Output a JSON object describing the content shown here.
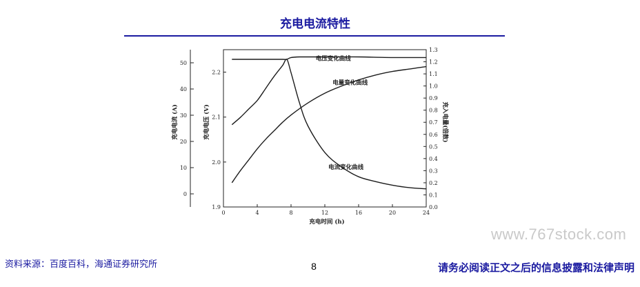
{
  "page": {
    "title": "充电电流特性",
    "source": "资料来源：百度百科，海通证券研究所",
    "page_number": "8",
    "disclaimer": "请务必阅读正文之后的信息披露和法律声明",
    "watermark": "www.767stock.com"
  },
  "chart_data": {
    "type": "line",
    "xlabel": "充电时间 (h)",
    "xlim": [
      0,
      24
    ],
    "x_ticks": [
      0,
      4,
      8,
      12,
      16,
      20,
      24
    ],
    "y_axes": {
      "current": {
        "label": "充电电流 (A)",
        "lim": [
          -5,
          55
        ],
        "ticks": [
          0,
          10,
          20,
          30,
          40,
          50
        ]
      },
      "voltage": {
        "label": "充电电压 (V)",
        "lim": [
          1.9,
          2.25
        ],
        "ticks": [
          1.9,
          2.0,
          2.1,
          2.2
        ]
      },
      "capacity": {
        "label": "充入电量(倍数)",
        "lim": [
          0,
          1.3
        ],
        "ticks": [
          0.0,
          0.1,
          0.2,
          0.3,
          0.4,
          0.5,
          0.6,
          0.7,
          0.8,
          0.9,
          1.0,
          1.1,
          1.2,
          1.3
        ]
      }
    },
    "series": [
      {
        "name": "电压变化曲线",
        "axis": "capacity",
        "x": [
          1,
          2,
          3,
          4,
          5,
          6,
          7,
          7.5,
          8,
          9,
          12,
          16,
          20,
          24
        ],
        "y": [
          1.22,
          1.22,
          1.22,
          1.22,
          1.22,
          1.22,
          1.22,
          1.22,
          1.235,
          1.24,
          1.24,
          1.24,
          1.235,
          1.235
        ]
      },
      {
        "name": "电量变化曲线",
        "axis": "capacity",
        "x": [
          1,
          2,
          3,
          4,
          5,
          6,
          7,
          8,
          10,
          12,
          14,
          16,
          18,
          20,
          22,
          24
        ],
        "y": [
          0.2,
          0.3,
          0.39,
          0.48,
          0.56,
          0.63,
          0.7,
          0.76,
          0.86,
          0.94,
          1.0,
          1.05,
          1.09,
          1.12,
          1.14,
          1.16
        ]
      },
      {
        "name": "电流变化曲线",
        "axis": "capacity",
        "x": [
          1,
          2,
          3,
          4,
          5,
          6,
          7,
          7.5,
          8,
          9,
          10,
          12,
          14,
          16,
          18,
          20,
          22,
          24
        ],
        "y": [
          0.68,
          0.74,
          0.81,
          0.88,
          0.98,
          1.08,
          1.17,
          1.22,
          1.11,
          0.86,
          0.67,
          0.45,
          0.33,
          0.25,
          0.21,
          0.18,
          0.16,
          0.15
        ]
      }
    ],
    "annotations": [
      {
        "text": "电压变化曲线",
        "x": 13,
        "y": 1.23
      },
      {
        "text": "电量变化曲线",
        "x": 15,
        "y": 1.03
      },
      {
        "text": "电流变化曲线",
        "x": 14.5,
        "y": 0.33
      }
    ]
  }
}
